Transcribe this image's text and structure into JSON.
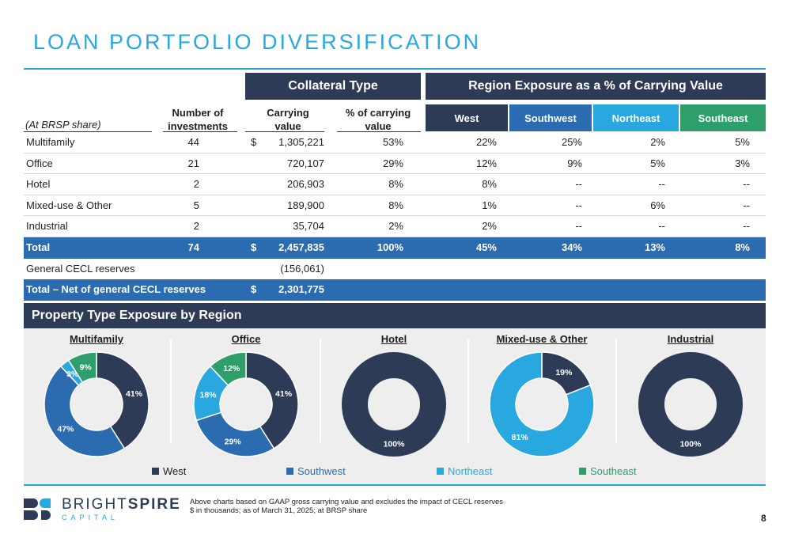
{
  "title": "LOAN PORTFOLIO DIVERSIFICATION",
  "table": {
    "group_collateral": "Collateral Type",
    "group_region": "Region Exposure as a % of Carrying Value",
    "share_note": "(At BRSP share)",
    "col_num_1": "Number of",
    "col_num_2": "investments",
    "col_carry_1": "Carrying",
    "col_carry_2": "value",
    "col_pct_1": "% of carrying",
    "col_pct_2": "value",
    "regions": [
      {
        "label": "West",
        "color": "#2e3b57"
      },
      {
        "label": "Southwest",
        "color": "#2b6cb0"
      },
      {
        "label": "Northeast",
        "color": "#29a8e0"
      },
      {
        "label": "Southeast",
        "color": "#2e9e6b"
      }
    ],
    "rows": [
      {
        "label": "Multifamily",
        "num": "44",
        "dollar": "$",
        "carry": "1,305,221",
        "pct": "53%",
        "w": "22%",
        "sw": "25%",
        "ne": "2%",
        "se": "5%"
      },
      {
        "label": "Office",
        "num": "21",
        "dollar": "",
        "carry": "720,107",
        "pct": "29%",
        "w": "12%",
        "sw": "9%",
        "ne": "5%",
        "se": "3%"
      },
      {
        "label": "Hotel",
        "num": "2",
        "dollar": "",
        "carry": "206,903",
        "pct": "8%",
        "w": "8%",
        "sw": "--",
        "ne": "--",
        "se": "--"
      },
      {
        "label": "Mixed-use & Other",
        "num": "5",
        "dollar": "",
        "carry": "189,900",
        "pct": "8%",
        "w": "1%",
        "sw": "--",
        "ne": "6%",
        "se": "--"
      },
      {
        "label": "Industrial",
        "num": "2",
        "dollar": "",
        "carry": "35,704",
        "pct": "2%",
        "w": "2%",
        "sw": "--",
        "ne": "--",
        "se": "--"
      }
    ],
    "total": {
      "label": "Total",
      "num": "74",
      "dollar": "$",
      "carry": "2,457,835",
      "pct": "100%",
      "w": "45%",
      "sw": "34%",
      "ne": "13%",
      "se": "8%"
    },
    "cecl": {
      "label": "General CECL reserves",
      "carry": "(156,061)"
    },
    "net": {
      "label": "Total – Net of general CECL reserves",
      "dollar": "$",
      "carry": "2,301,775"
    }
  },
  "property_section": {
    "title": "Property Type Exposure by Region"
  },
  "chart_data": [
    {
      "type": "pie",
      "title": "Multifamily",
      "labels": [
        "West",
        "Southwest",
        "Northeast",
        "Southeast"
      ],
      "values": [
        41,
        47,
        3,
        9
      ],
      "value_labels": [
        "41%",
        "47%",
        "3%",
        "9%"
      ]
    },
    {
      "type": "pie",
      "title": "Office",
      "labels": [
        "West",
        "Southwest",
        "Northeast",
        "Southeast"
      ],
      "values": [
        41,
        29,
        18,
        12
      ],
      "value_labels": [
        "41%",
        "29%",
        "18%",
        "12%"
      ]
    },
    {
      "type": "pie",
      "title": "Hotel",
      "labels": [
        "West"
      ],
      "values": [
        100
      ],
      "value_labels": [
        "100%"
      ]
    },
    {
      "type": "pie",
      "title": "Mixed-use & Other",
      "labels": [
        "West",
        "Northeast"
      ],
      "values": [
        19,
        81
      ],
      "value_labels": [
        "19%",
        "81%"
      ]
    },
    {
      "type": "pie",
      "title": "Industrial",
      "labels": [
        "West"
      ],
      "values": [
        100
      ],
      "value_labels": [
        "100%"
      ]
    }
  ],
  "legend": [
    "West",
    "Southwest",
    "Northeast",
    "Southeast"
  ],
  "colors": {
    "West": "#2e3b57",
    "Southwest": "#2b6cb0",
    "Northeast": "#29a8e0",
    "Southeast": "#2e9e6b"
  },
  "logo": {
    "main_light": "BRIGHT",
    "main_bold": "SPIRE",
    "sub": "CAPITAL"
  },
  "footnotes": [
    "Above charts based on GAAP gross carrying value and excludes the impact of CECL reserves",
    "$ in thousands; as of March 31, 2025; at BRSP share"
  ],
  "page_number": "8"
}
